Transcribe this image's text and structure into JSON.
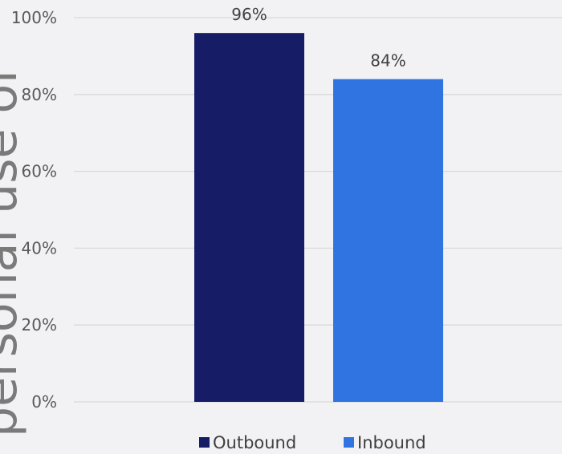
{
  "chart_data": {
    "type": "bar",
    "categories": [
      ""
    ],
    "series": [
      {
        "name": "Outbound",
        "values": [
          96
        ],
        "color": "#161c66",
        "value_label": "96%"
      },
      {
        "name": "Inbound",
        "values": [
          84
        ],
        "color": "#2f74e0",
        "value_label": "84%"
      }
    ],
    "ylim": [
      0,
      100
    ],
    "yticks": [
      {
        "value": 0,
        "label": "0%"
      },
      {
        "value": 20,
        "label": "20%"
      },
      {
        "value": 40,
        "label": "40%"
      },
      {
        "value": 60,
        "label": "60%"
      },
      {
        "value": 80,
        "label": "80%"
      },
      {
        "value": 100,
        "label": "100%"
      }
    ],
    "ylabel": "personal use of",
    "grid": true,
    "legend_position": "bottom",
    "gridline_color": "#d9d9d9",
    "background": "#f2f2f4"
  }
}
